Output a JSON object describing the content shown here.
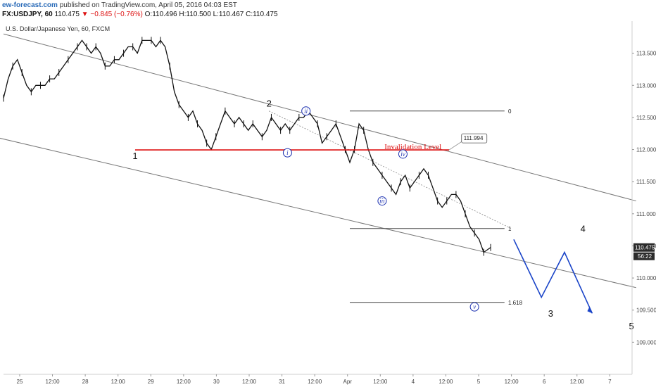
{
  "header": {
    "publisher": "ew-forecast.com",
    "published_text": "published on TradingView.com, April 05, 2016 04:03 EST",
    "symbol_line": "FX:USDJPY, 60",
    "last": "110.475",
    "change": "▼ −0.845 (−0.76%)",
    "o": "O:110.496",
    "h": "H:110.500",
    "l": "L:110.467",
    "c": "C:110.475"
  },
  "chart_data": {
    "type": "line",
    "title": "U.S. Dollar/Japanese Yen, 60, FXCM",
    "ylim": [
      108.5,
      114.0
    ],
    "price_ticks": [
      "113.500",
      "113.000",
      "112.500",
      "112.000",
      "111.500",
      "111.000",
      "110.500",
      "110.000",
      "109.500",
      "109.000"
    ],
    "x_ticks": [
      "25",
      "12:00",
      "28",
      "12:00",
      "29",
      "12:00",
      "30",
      "12:00",
      "31",
      "12:00",
      "Apr",
      "12:00",
      "4",
      "12:00",
      "5",
      "12:00",
      "6",
      "12:00",
      "7"
    ],
    "last_price_label": "110.475",
    "secondary_label": "56:22",
    "colors": {
      "price": "#111111",
      "channel": "#777777",
      "invalidation": "#dd1111",
      "projection": "#1a44c8",
      "circled": "#1a2fb0"
    },
    "price_path": [
      [
        0,
        112.8
      ],
      [
        4,
        113.1
      ],
      [
        8,
        113.3
      ],
      [
        12,
        113.4
      ],
      [
        16,
        113.2
      ],
      [
        20,
        113.0
      ],
      [
        24,
        112.9
      ],
      [
        28,
        113.0
      ],
      [
        32,
        113.0
      ],
      [
        36,
        113.0
      ],
      [
        40,
        113.1
      ],
      [
        44,
        113.1
      ],
      [
        48,
        113.2
      ],
      [
        52,
        113.3
      ],
      [
        56,
        113.4
      ],
      [
        60,
        113.5
      ],
      [
        64,
        113.6
      ],
      [
        68,
        113.7
      ],
      [
        72,
        113.6
      ],
      [
        76,
        113.5
      ],
      [
        80,
        113.6
      ],
      [
        84,
        113.5
      ],
      [
        88,
        113.3
      ],
      [
        92,
        113.3
      ],
      [
        96,
        113.4
      ],
      [
        100,
        113.4
      ],
      [
        104,
        113.5
      ],
      [
        108,
        113.6
      ],
      [
        112,
        113.6
      ],
      [
        116,
        113.5
      ],
      [
        120,
        113.7
      ],
      [
        124,
        113.7
      ],
      [
        128,
        113.7
      ],
      [
        132,
        113.6
      ],
      [
        136,
        113.7
      ],
      [
        140,
        113.6
      ],
      [
        144,
        113.3
      ],
      [
        148,
        112.9
      ],
      [
        152,
        112.7
      ],
      [
        156,
        112.6
      ],
      [
        160,
        112.5
      ],
      [
        164,
        112.6
      ],
      [
        168,
        112.4
      ],
      [
        172,
        112.3
      ],
      [
        176,
        112.1
      ],
      [
        180,
        112.0
      ],
      [
        184,
        112.2
      ],
      [
        188,
        112.4
      ],
      [
        192,
        112.6
      ],
      [
        196,
        112.5
      ],
      [
        200,
        112.4
      ],
      [
        204,
        112.5
      ],
      [
        208,
        112.4
      ],
      [
        212,
        112.3
      ],
      [
        216,
        112.4
      ],
      [
        220,
        112.3
      ],
      [
        224,
        112.2
      ],
      [
        228,
        112.3
      ],
      [
        232,
        112.5
      ],
      [
        236,
        112.4
      ],
      [
        240,
        112.3
      ],
      [
        244,
        112.4
      ],
      [
        248,
        112.3
      ],
      [
        252,
        112.4
      ],
      [
        256,
        112.5
      ],
      [
        260,
        112.5
      ],
      [
        264,
        112.6
      ],
      [
        268,
        112.5
      ],
      [
        272,
        112.4
      ],
      [
        276,
        112.1
      ],
      [
        280,
        112.2
      ],
      [
        284,
        112.3
      ],
      [
        288,
        112.4
      ],
      [
        292,
        112.2
      ],
      [
        296,
        112.0
      ],
      [
        300,
        111.8
      ],
      [
        304,
        112.0
      ],
      [
        308,
        112.4
      ],
      [
        312,
        112.3
      ],
      [
        316,
        112.0
      ],
      [
        320,
        111.8
      ],
      [
        324,
        111.7
      ],
      [
        328,
        111.6
      ],
      [
        332,
        111.5
      ],
      [
        336,
        111.4
      ],
      [
        340,
        111.3
      ],
      [
        344,
        111.5
      ],
      [
        348,
        111.6
      ],
      [
        352,
        111.4
      ],
      [
        356,
        111.5
      ],
      [
        360,
        111.6
      ],
      [
        364,
        111.7
      ],
      [
        368,
        111.6
      ],
      [
        372,
        111.4
      ],
      [
        376,
        111.2
      ],
      [
        380,
        111.1
      ],
      [
        384,
        111.2
      ],
      [
        388,
        111.3
      ],
      [
        392,
        111.3
      ],
      [
        396,
        111.2
      ],
      [
        400,
        111.0
      ],
      [
        404,
        110.8
      ],
      [
        408,
        110.7
      ],
      [
        412,
        110.6
      ],
      [
        416,
        110.4
      ],
      [
        420,
        110.45
      ],
      [
        422,
        110.475
      ]
    ],
    "wave_labels": [
      {
        "text": "1",
        "x": 28.5,
        "y": 111.85
      },
      {
        "text": "2",
        "x": 57.5,
        "y": 112.67
      },
      {
        "text": "3",
        "x": 118.5,
        "y": 109.4
      },
      {
        "text": "4",
        "x": 125.5,
        "y": 110.72
      },
      {
        "text": "5",
        "x": 136,
        "y": 109.2
      }
    ],
    "circled_labels": [
      {
        "text": "i",
        "x": 61.5,
        "y": 111.95
      },
      {
        "text": "ii",
        "x": 65.5,
        "y": 112.6
      },
      {
        "text": "iii",
        "x": 82,
        "y": 111.2
      },
      {
        "text": "iv",
        "x": 86.5,
        "y": 111.93
      },
      {
        "text": "v",
        "x": 102,
        "y": 109.55
      }
    ],
    "invalidation": {
      "text": "Invalidation Level",
      "price": 111.994,
      "value_label": "111.994"
    },
    "fib_levels": [
      {
        "label": "0",
        "price": 112.6
      },
      {
        "label": "1",
        "price": 110.77
      },
      {
        "label": "1.618",
        "price": 109.62
      }
    ],
    "projection": [
      [
        110.5,
        110.6
      ],
      [
        116.5,
        109.7
      ],
      [
        121.5,
        110.4
      ],
      [
        127.5,
        109.45
      ]
    ],
    "channel": {
      "upper": [
        [
          0,
          113.8
        ],
        [
          137,
          111.2
        ]
      ],
      "lower": [
        [
          -14,
          112.4
        ],
        [
          137,
          109.85
        ]
      ]
    }
  }
}
